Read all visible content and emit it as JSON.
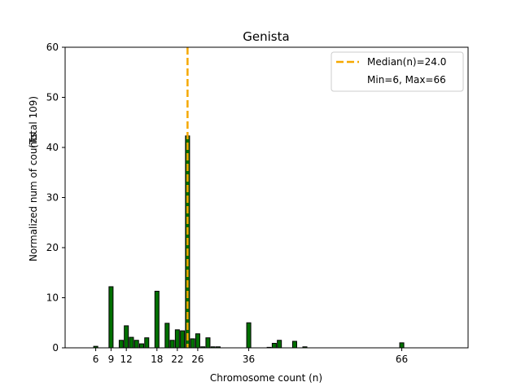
{
  "chart_data": {
    "type": "bar",
    "title": "Genista",
    "xlabel": "Chromosome count (n)",
    "ylabel": "Normalized num of counts",
    "ylabel2": "(Total 109)",
    "xlim": [
      0,
      79
    ],
    "ylim": [
      0,
      60
    ],
    "xticks": [
      6,
      9,
      12,
      18,
      22,
      26,
      36,
      66
    ],
    "yticks": [
      0,
      10,
      20,
      30,
      40,
      50,
      60
    ],
    "bar_color": "#007000",
    "median_color": "#f5a800",
    "median": 24.0,
    "bars": {
      "x": [
        6,
        9,
        11,
        12,
        13,
        14,
        15,
        16,
        18,
        20,
        21,
        22,
        23,
        24,
        25,
        26,
        27,
        28,
        29,
        30,
        36,
        40,
        41,
        42,
        45,
        47,
        66
      ],
      "values": [
        0.3,
        12.2,
        1.5,
        4.4,
        2.1,
        1.5,
        0.8,
        2.0,
        11.3,
        4.9,
        1.5,
        3.6,
        3.4,
        42.3,
        1.8,
        2.8,
        0.2,
        2.0,
        0.2,
        0.2,
        5.0,
        0.1,
        0.9,
        1.5,
        1.3,
        0.2,
        1.0
      ]
    },
    "legend": {
      "placement": "top-right",
      "entries": [
        "Median(n)=24.0",
        "Min=6, Max=66"
      ]
    }
  }
}
